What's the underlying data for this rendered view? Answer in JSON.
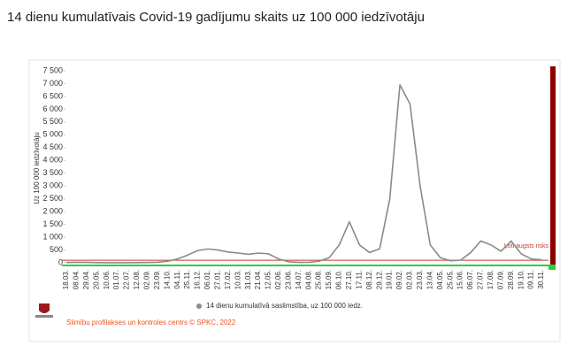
{
  "chart_data": {
    "type": "line",
    "title": "14 dienu kumulatīvais Covid-19 gadījumu skaits uz 100 000 iedzīvotāju",
    "y_label": "Uz 100 000 iedzīvotāju",
    "categories": [
      "18.03.",
      "08.04.",
      "29.04.",
      "20.05.",
      "10.06.",
      "01.07.",
      "22.07.",
      "12.08.",
      "02.09.",
      "23.09.",
      "14.10.",
      "04.11.",
      "25.11.",
      "16.12.",
      "06.01.",
      "27.01.",
      "17.02.",
      "10.03.",
      "31.03.",
      "21.04.",
      "12.05.",
      "02.06.",
      "23.06.",
      "14.07.",
      "04.08.",
      "25.08.",
      "15.09.",
      "06.10.",
      "27.10.",
      "17.11.",
      "08.12.",
      "29.12.",
      "19.01.",
      "09.02.",
      "02.03.",
      "23.03.",
      "13.04.",
      "04.05.",
      "25.05.",
      "15.06.",
      "06.07.",
      "27.07.",
      "17.08.",
      "07.09.",
      "28.09.",
      "19.10.",
      "09.11.",
      "30.11."
    ],
    "series": [
      {
        "name": "14 dienu kumulatīvā saslimstība, uz 100 000 iedz.",
        "color": "#8a8a8a",
        "values": [
          10,
          20,
          15,
          5,
          3,
          2,
          3,
          5,
          10,
          20,
          60,
          150,
          300,
          480,
          540,
          500,
          420,
          380,
          330,
          380,
          350,
          150,
          40,
          15,
          20,
          60,
          200,
          700,
          1600,
          700,
          400,
          550,
          2500,
          6950,
          6200,
          3000,
          700,
          200,
          80,
          100,
          400,
          850,
          700,
          450,
          850,
          350,
          150,
          120
        ]
      }
    ],
    "ylim": [
      0,
      7500
    ],
    "yticks": [
      0,
      500,
      {
        "value": 1000,
        "label": "1 000"
      },
      {
        "value": 1500,
        "label": "1 500"
      },
      {
        "value": 2000,
        "label": "2 000"
      },
      {
        "value": 2500,
        "label": "2 500"
      },
      {
        "value": 3000,
        "label": "3 000"
      },
      {
        "value": 3500,
        "label": "3 500"
      },
      {
        "value": 4000,
        "label": "4 000"
      },
      {
        "value": 4500,
        "label": "4 500"
      },
      {
        "value": 5000,
        "label": "5 000"
      },
      {
        "value": 5500,
        "label": "5 500"
      },
      {
        "value": 6000,
        "label": "6 000"
      },
      {
        "value": 6500,
        "label": "6 500"
      },
      {
        "value": 7000,
        "label": "7 000"
      },
      {
        "value": 7500,
        "label": "7 500"
      }
    ],
    "threshold": {
      "value": 100,
      "label": "Ļoti augsts risks",
      "color": "#c0392b"
    },
    "grid": false,
    "footer": "Slimību profilakses un kontroles centrs © SPKC, 2022"
  }
}
